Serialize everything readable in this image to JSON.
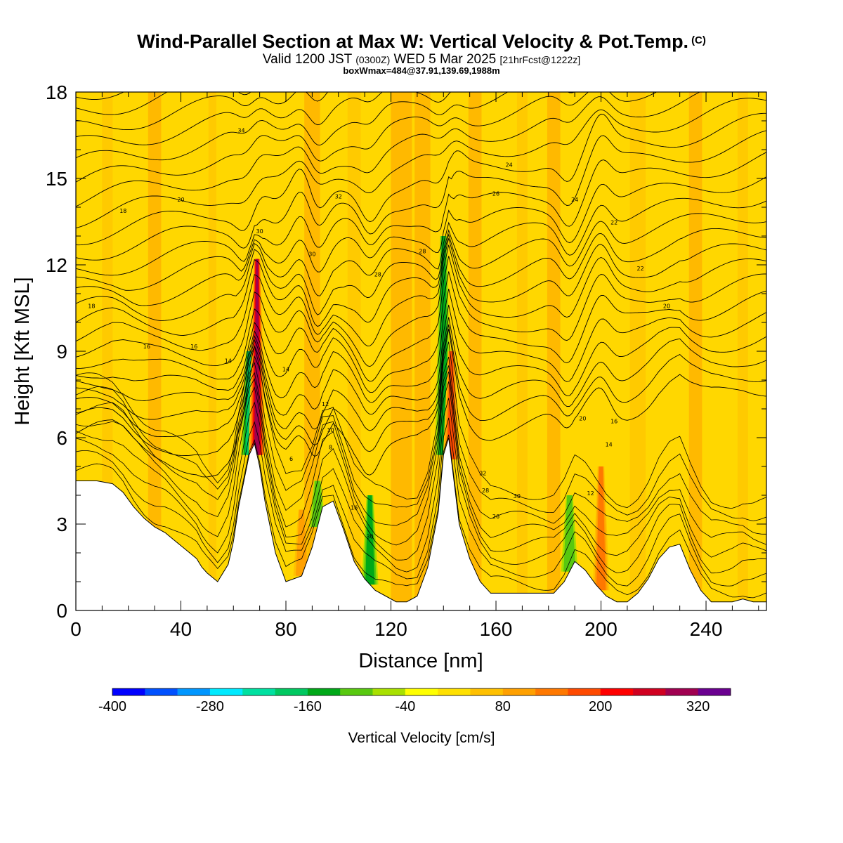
{
  "title": {
    "main": "Wind-Parallel Section at Max W: Vertical Velocity & Pot.Temp.",
    "copyright": "(C)",
    "valid_prefix": "Valid 1200 JST",
    "utc": "(0300Z)",
    "valid_date": "WED 5 Mar 2025",
    "forecast": "[21hrFcst@1222z]",
    "box_info": "boxWmax=484@37.91,139.69,1988m"
  },
  "chart_data": {
    "type": "heatmap",
    "xlabel": "Distance [nm]",
    "ylabel": "Height [Kft MSL]",
    "xlim": [
      0,
      263
    ],
    "ylim": [
      0,
      18
    ],
    "x_ticks": [
      "0",
      "40",
      "80",
      "120",
      "160",
      "200",
      "240"
    ],
    "x_tick_values": [
      0,
      40,
      80,
      120,
      160,
      200,
      240
    ],
    "y_ticks": [
      "0",
      "3",
      "6",
      "9",
      "12",
      "15",
      "18"
    ],
    "y_tick_values": [
      0,
      3,
      6,
      9,
      12,
      15,
      18
    ],
    "colorbar": {
      "title": "Vertical Velocity [cm/s]",
      "labels": [
        "-400",
        "-280",
        "-160",
        "-40",
        "80",
        "200",
        "320"
      ],
      "label_values": [
        -400,
        -280,
        -160,
        -40,
        80,
        200,
        320
      ],
      "range": [
        -400,
        360
      ],
      "step": 40,
      "colors": [
        "#0000ff",
        "#0050ff",
        "#0096ff",
        "#00eaff",
        "#00e0a0",
        "#00c860",
        "#00a818",
        "#58c810",
        "#a8e000",
        "#ffff00",
        "#ffe000",
        "#ffc000",
        "#ffa000",
        "#ff7800",
        "#ff4a00",
        "#ff0000",
        "#d00020",
        "#a00050",
        "#6a0090"
      ]
    },
    "terrain_profile": {
      "distance_nm": [
        0,
        8,
        14,
        18,
        22,
        26,
        30,
        34,
        38,
        42,
        46,
        48,
        50,
        54,
        58,
        60,
        62,
        66,
        68,
        70,
        72,
        76,
        80,
        86,
        90,
        94,
        98,
        102,
        106,
        110,
        114,
        118,
        122,
        126,
        130,
        134,
        138,
        140,
        142,
        144,
        146,
        150,
        154,
        158,
        162,
        166,
        170,
        174,
        178,
        182,
        186,
        190,
        194,
        198,
        202,
        206,
        210,
        214,
        218,
        222,
        226,
        230,
        234,
        238,
        242,
        246,
        250,
        254,
        258,
        263
      ],
      "height_kft": [
        4.5,
        4.5,
        4.4,
        4.1,
        3.6,
        3.2,
        2.9,
        2.7,
        2.4,
        2.1,
        1.8,
        1.5,
        1.3,
        1.0,
        1.6,
        2.4,
        3.6,
        5.4,
        5.8,
        5.0,
        3.8,
        2.0,
        1.0,
        1.2,
        2.2,
        3.6,
        3.8,
        2.8,
        1.7,
        1.1,
        0.7,
        0.5,
        0.3,
        0.3,
        0.5,
        1.5,
        3.4,
        5.4,
        6.0,
        4.5,
        3.0,
        1.8,
        1.0,
        0.6,
        0.6,
        0.6,
        0.6,
        0.6,
        0.6,
        0.6,
        1.0,
        1.7,
        1.4,
        0.9,
        0.5,
        0.3,
        0.3,
        0.6,
        1.1,
        1.8,
        2.2,
        2.3,
        1.4,
        0.7,
        0.3,
        0.3,
        0.3,
        0.4,
        0.3,
        0.3
      ]
    },
    "isentrope_labels": [
      "34",
      "32",
      "30",
      "30",
      "28",
      "28",
      "26",
      "24",
      "24",
      "22",
      "22",
      "20",
      "20",
      "18",
      "18",
      "16",
      "16",
      "14",
      "14",
      "12",
      "10",
      "8",
      "6",
      "16",
      "30",
      "32",
      "28",
      "26",
      "30",
      "20",
      "16",
      "14",
      "12"
    ],
    "updraft_columns": [
      {
        "x_nm": 69,
        "peak_kft": 12.2,
        "w_cms": 280
      },
      {
        "x_nm": 143,
        "peak_kft": 9.0,
        "w_cms": 160
      },
      {
        "x_nm": 200,
        "peak_kft": 5.0,
        "w_cms": 120
      },
      {
        "x_nm": 86,
        "peak_kft": 3.5,
        "w_cms": 100
      }
    ],
    "downdraft_columns": [
      {
        "x_nm": 66,
        "peak_kft": 9.0,
        "w_cms": -180
      },
      {
        "x_nm": 140,
        "peak_kft": 13.0,
        "w_cms": -120
      },
      {
        "x_nm": 112,
        "peak_kft": 4.0,
        "w_cms": -120
      },
      {
        "x_nm": 92,
        "peak_kft": 4.5,
        "w_cms": -100
      },
      {
        "x_nm": 188,
        "peak_kft": 4.0,
        "w_cms": -80
      }
    ]
  }
}
